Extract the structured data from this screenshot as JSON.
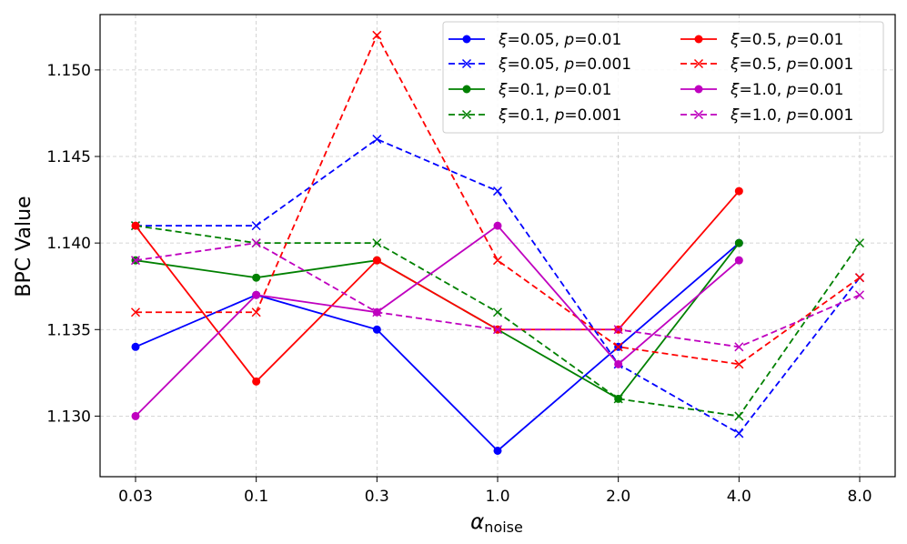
{
  "chart_data": {
    "type": "line",
    "title": "",
    "xlabel_symbol": "α",
    "xlabel_sub": "noise",
    "ylabel": "BPC Value",
    "categories": [
      "0.03",
      "0.1",
      "0.3",
      "1.0",
      "2.0",
      "4.0",
      "8.0"
    ],
    "ylim": [
      1.1265,
      1.1532
    ],
    "yticks": [
      1.13,
      1.135,
      1.14,
      1.145,
      1.15
    ],
    "ytick_labels": [
      "1.130",
      "1.135",
      "1.140",
      "1.145",
      "1.150"
    ],
    "grid": true,
    "legend_position": "top-right",
    "series": [
      {
        "name": "ξ=0.05, p=0.01",
        "xi": "0.05",
        "p": "0.01",
        "color": "#0000ff",
        "style": "solid",
        "marker": "circle",
        "values": [
          1.134,
          1.137,
          1.135,
          1.128,
          1.134,
          1.14,
          null
        ]
      },
      {
        "name": "ξ=0.05, p=0.001",
        "xi": "0.05",
        "p": "0.001",
        "color": "#0000ff",
        "style": "dashed",
        "marker": "x",
        "values": [
          1.141,
          1.141,
          1.146,
          1.143,
          1.133,
          1.129,
          1.138
        ]
      },
      {
        "name": "ξ=0.1, p=0.01",
        "xi": "0.1",
        "p": "0.01",
        "color": "#008000",
        "style": "solid",
        "marker": "circle",
        "values": [
          1.139,
          1.138,
          1.139,
          1.135,
          1.131,
          1.14,
          null
        ]
      },
      {
        "name": "ξ=0.1, p=0.001",
        "xi": "0.1",
        "p": "0.001",
        "color": "#008000",
        "style": "dashed",
        "marker": "x",
        "values": [
          1.141,
          1.14,
          1.14,
          1.136,
          1.131,
          1.13,
          1.14
        ]
      },
      {
        "name": "ξ=0.5, p=0.01",
        "xi": "0.5",
        "p": "0.01",
        "color": "#ff0000",
        "style": "solid",
        "marker": "circle",
        "values": [
          1.141,
          1.132,
          1.139,
          1.135,
          1.135,
          1.143,
          null
        ]
      },
      {
        "name": "ξ=0.5, p=0.001",
        "xi": "0.5",
        "p": "0.001",
        "color": "#ff0000",
        "style": "dashed",
        "marker": "x",
        "values": [
          1.136,
          1.136,
          1.152,
          1.139,
          1.134,
          1.133,
          1.138
        ]
      },
      {
        "name": "ξ=1.0, p=0.01",
        "xi": "1.0",
        "p": "0.01",
        "color": "#bf00bf",
        "style": "solid",
        "marker": "circle",
        "values": [
          1.13,
          1.137,
          1.136,
          1.141,
          1.133,
          1.139,
          null
        ]
      },
      {
        "name": "ξ=1.0, p=0.001",
        "xi": "1.0",
        "p": "0.001",
        "color": "#bf00bf",
        "style": "dashed",
        "marker": "x",
        "values": [
          1.139,
          1.14,
          1.136,
          1.135,
          1.135,
          1.134,
          1.137
        ]
      }
    ]
  }
}
